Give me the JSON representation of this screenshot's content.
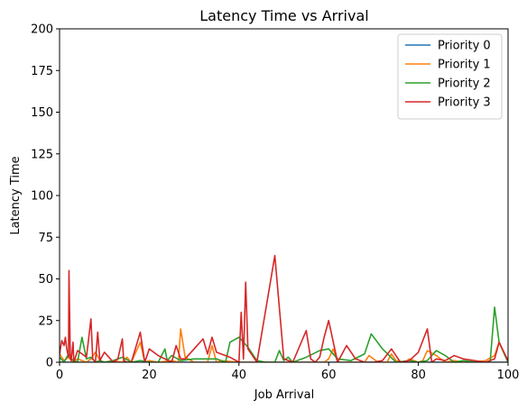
{
  "chart_data": {
    "type": "line",
    "title": "Latency Time vs Arrival",
    "xlabel": "Job Arrival",
    "ylabel": "Latency Time",
    "xlim": [
      0,
      100
    ],
    "ylim": [
      0,
      200
    ],
    "xticks": [
      0,
      20,
      40,
      60,
      80,
      100
    ],
    "yticks": [
      0,
      25,
      50,
      75,
      100,
      125,
      150,
      175,
      200
    ],
    "grid": false,
    "legend_position": "top-right",
    "series": [
      {
        "name": "Priority 0",
        "color": "#1f77b4",
        "x": [
          0,
          2,
          4,
          6,
          8,
          10,
          12,
          14,
          16,
          18,
          20,
          25,
          30,
          35,
          40,
          45,
          50,
          55,
          60,
          65,
          70,
          75,
          80,
          85,
          90,
          95,
          100
        ],
        "y": [
          0,
          0,
          0,
          0,
          0,
          0,
          0,
          0,
          0,
          0,
          0,
          0,
          0,
          0,
          0,
          0,
          0,
          0,
          0,
          0,
          0,
          0,
          0,
          0,
          0,
          0,
          0
        ]
      },
      {
        "name": "Priority 1",
        "color": "#ff7f0e",
        "x": [
          0,
          1,
          2,
          3,
          4,
          5,
          6,
          7,
          8,
          9,
          10,
          12,
          14,
          15,
          16,
          18,
          19,
          20,
          22,
          25,
          26.5,
          27,
          28,
          30,
          33,
          34,
          35,
          36,
          40,
          44,
          48,
          50,
          55,
          59,
          60,
          61,
          62,
          65,
          68,
          69,
          71,
          73,
          74,
          75,
          77,
          78,
          80,
          81,
          82,
          84,
          86,
          88,
          90,
          92,
          95,
          97,
          98,
          100
        ],
        "y": [
          5,
          1,
          3,
          0,
          2,
          1,
          0,
          2,
          6,
          1,
          0,
          1,
          0,
          3,
          0,
          12,
          0,
          1,
          0,
          1,
          0,
          20,
          3,
          0,
          0,
          10,
          0,
          1,
          0,
          0,
          0,
          0,
          0,
          0,
          2,
          8,
          0,
          0,
          0,
          4,
          0,
          0,
          5,
          1,
          0,
          2,
          0,
          1,
          7,
          4,
          0,
          1,
          0,
          0,
          1,
          4,
          12,
          0
        ]
      },
      {
        "name": "Priority 2",
        "color": "#2ca02c",
        "x": [
          0,
          1,
          2,
          3,
          4,
          5,
          6,
          7,
          8,
          9,
          10,
          12,
          14,
          16,
          18,
          20,
          22,
          23.5,
          24,
          25,
          27,
          30,
          35,
          37,
          38,
          40,
          42,
          44,
          46,
          48,
          49,
          50,
          51,
          52,
          55,
          58,
          60,
          62,
          65,
          68,
          69.5,
          72,
          75,
          78,
          80,
          82,
          84,
          86,
          88,
          90,
          93,
          96,
          97,
          98,
          100
        ],
        "y": [
          3,
          0,
          5,
          1,
          0,
          15,
          2,
          3,
          0,
          1,
          0,
          1,
          3,
          0,
          1,
          0,
          0,
          8,
          1,
          4,
          1,
          2,
          2,
          0,
          12,
          15,
          9,
          1,
          0,
          0,
          7,
          1,
          3,
          0,
          3,
          7,
          8,
          2,
          1,
          5,
          17,
          8,
          0,
          1,
          0,
          1,
          7,
          4,
          0,
          1,
          0,
          0,
          33,
          12,
          0
        ]
      },
      {
        "name": "Priority 3",
        "color": "#d62728",
        "x": [
          0,
          0.5,
          1,
          1.3,
          1.6,
          2,
          2.1,
          2.4,
          2.6,
          3,
          3.2,
          4,
          5,
          6,
          7,
          7.4,
          8,
          8.5,
          9,
          10,
          11,
          12,
          13,
          14,
          14.3,
          15,
          16,
          18,
          19,
          20,
          22,
          25,
          26,
          27,
          28,
          30,
          32,
          33,
          34,
          35,
          36,
          38,
          40,
          40.5,
          41,
          41.5,
          42,
          44,
          48,
          50,
          52,
          55,
          56,
          57,
          58,
          59,
          60,
          62,
          64,
          66,
          68,
          70,
          72,
          74,
          76,
          78,
          80,
          82,
          83,
          84,
          86,
          88,
          90,
          95,
          97,
          98,
          100
        ],
        "y": [
          5,
          13,
          10,
          15,
          8,
          3,
          55,
          2,
          1,
          12,
          0,
          7,
          5,
          3,
          26,
          2,
          0,
          18,
          1,
          6,
          3,
          0,
          2,
          14,
          1,
          0,
          0,
          18,
          0,
          8,
          4,
          0,
          10,
          2,
          2,
          8,
          14,
          5,
          15,
          6,
          5,
          3,
          0,
          30,
          2,
          48,
          8,
          0,
          64,
          2,
          0,
          19,
          2,
          0,
          3,
          15,
          25,
          0,
          10,
          2,
          0,
          0,
          1,
          8,
          0,
          1,
          6,
          20,
          0,
          2,
          1,
          4,
          2,
          0,
          2,
          12,
          1
        ]
      }
    ]
  }
}
